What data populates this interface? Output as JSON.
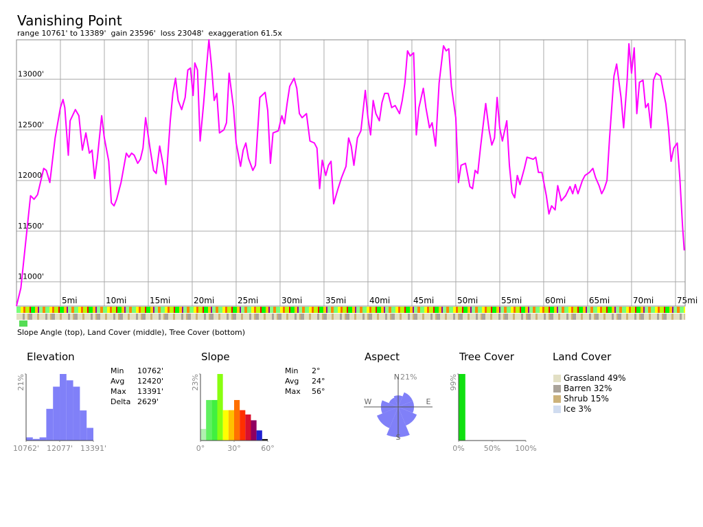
{
  "chart_data": [
    {
      "type": "line",
      "title": "Vanishing Point",
      "subtitle": "range 10761' to 13389'  gain 23596'  loss 23048'  exaggeration 61.5x",
      "color": "#ff00ff",
      "xlim": [
        0,
        76.1
      ],
      "ylim": [
        10761,
        13389
      ],
      "xticks": [
        {
          "value": 5,
          "label": "5mi"
        },
        {
          "value": 10,
          "label": "10mi"
        },
        {
          "value": 15,
          "label": "15mi"
        },
        {
          "value": 20,
          "label": "20mi"
        },
        {
          "value": 25,
          "label": "25mi"
        },
        {
          "value": 30,
          "label": "30mi"
        },
        {
          "value": 35,
          "label": "35mi"
        },
        {
          "value": 40,
          "label": "40mi"
        },
        {
          "value": 45,
          "label": "45mi"
        },
        {
          "value": 50,
          "label": "50mi"
        },
        {
          "value": 55,
          "label": "55mi"
        },
        {
          "value": 60,
          "label": "60mi"
        },
        {
          "value": 65,
          "label": "65mi"
        },
        {
          "value": 70,
          "label": "70mi"
        },
        {
          "value": 75,
          "label": "75mi"
        }
      ],
      "yticks": [
        {
          "value": 11000,
          "label": "11000'"
        },
        {
          "value": 11500,
          "label": "11500'"
        },
        {
          "value": 12000,
          "label": "12000'"
        },
        {
          "value": 12500,
          "label": "12500'"
        },
        {
          "value": 13000,
          "label": "13000'"
        }
      ],
      "grid": true,
      "x": [
        0,
        0.5,
        1.6,
        2.0,
        2.4,
        3.1,
        3.4,
        3.8,
        4.4,
        5.0,
        5.3,
        5.5,
        5.9,
        6.1,
        6.7,
        7.1,
        7.5,
        7.9,
        8.3,
        8.6,
        8.9,
        9.2,
        9.7,
        10.0,
        10.5,
        10.8,
        11.1,
        11.4,
        11.9,
        12.5,
        12.8,
        13.1,
        13.4,
        13.8,
        14.1,
        14.4,
        14.7,
        15.2,
        15.6,
        15.9,
        16.3,
        16.7,
        17.0,
        17.5,
        17.8,
        18.1,
        18.4,
        18.8,
        19.2,
        19.5,
        19.8,
        20.1,
        20.3,
        20.6,
        20.9,
        21.3,
        21.6,
        21.9,
        22.2,
        22.5,
        22.8,
        23.1,
        23.6,
        23.9,
        24.2,
        24.7,
        25.0,
        25.5,
        25.8,
        26.1,
        26.4,
        26.9,
        27.2,
        27.7,
        28.3,
        28.6,
        28.9,
        29.2,
        29.8,
        30.2,
        30.5,
        30.8,
        31.1,
        31.6,
        31.9,
        32.2,
        32.5,
        33.0,
        33.4,
        33.9,
        34.2,
        34.5,
        34.8,
        35.2,
        35.5,
        35.8,
        36.1,
        36.6,
        37.0,
        37.5,
        37.8,
        38.1,
        38.4,
        38.8,
        39.2,
        39.7,
        40.0,
        40.3,
        40.6,
        40.9,
        41.3,
        41.6,
        41.9,
        42.3,
        42.7,
        43.1,
        43.6,
        43.9,
        44.2,
        44.5,
        44.8,
        45.2,
        45.5,
        45.8,
        46.3,
        46.6,
        47.0,
        47.3,
        47.7,
        48.1,
        48.6,
        48.9,
        49.2,
        49.5,
        50.0,
        50.3,
        50.6,
        51.1,
        51.6,
        51.9,
        52.2,
        52.5,
        52.8,
        53.4,
        53.8,
        54.1,
        54.4,
        54.7,
        55.0,
        55.3,
        55.8,
        56.1,
        56.4,
        56.7,
        57.0,
        57.3,
        57.8,
        58.1,
        58.8,
        59.1,
        59.4,
        59.8,
        60.3,
        60.6,
        60.9,
        61.3,
        61.6,
        62.0,
        62.5,
        63.0,
        63.3,
        63.6,
        63.9,
        64.4,
        64.7,
        65.2,
        65.6,
        65.9,
        66.3,
        66.6,
        66.9,
        67.2,
        67.5,
        68.0,
        68.3,
        68.8,
        69.1,
        69.5,
        69.7,
        70.0,
        70.3,
        70.6,
        70.9,
        71.3,
        71.6,
        71.9,
        72.2,
        72.5,
        72.8,
        73.3,
        73.6,
        73.9,
        74.2,
        74.5,
        74.8,
        75.2,
        75.5,
        75.8,
        76.0
      ],
      "values": [
        10762,
        10940,
        11850,
        11815,
        11860,
        12120,
        12100,
        11980,
        12420,
        12720,
        12800,
        12720,
        12250,
        12590,
        12700,
        12640,
        12300,
        12470,
        12270,
        12300,
        12020,
        12220,
        12640,
        12420,
        12190,
        11780,
        11750,
        11815,
        11980,
        12270,
        12230,
        12270,
        12250,
        12170,
        12210,
        12320,
        12620,
        12320,
        12100,
        12070,
        12340,
        12150,
        11960,
        12590,
        12860,
        13010,
        12790,
        12700,
        12820,
        13090,
        13110,
        12840,
        13160,
        13090,
        12390,
        12760,
        13090,
        13389,
        13130,
        12790,
        12860,
        12470,
        12500,
        12570,
        13060,
        12720,
        12370,
        12140,
        12300,
        12370,
        12220,
        12100,
        12150,
        12820,
        12870,
        12690,
        12170,
        12470,
        12490,
        12640,
        12560,
        12760,
        12930,
        13010,
        12910,
        12660,
        12620,
        12660,
        12390,
        12370,
        12320,
        11920,
        12200,
        12050,
        12150,
        12190,
        11770,
        11920,
        12030,
        12140,
        12420,
        12340,
        12150,
        12420,
        12490,
        12890,
        12620,
        12450,
        12790,
        12660,
        12590,
        12770,
        12860,
        12860,
        12720,
        12740,
        12660,
        12790,
        12960,
        13280,
        13230,
        13260,
        12450,
        12720,
        12910,
        12720,
        12520,
        12570,
        12340,
        12960,
        13330,
        13280,
        13300,
        12930,
        12620,
        11980,
        12150,
        12170,
        11940,
        11920,
        12100,
        12070,
        12320,
        12760,
        12490,
        12350,
        12420,
        12820,
        12520,
        12390,
        12590,
        12150,
        11880,
        11830,
        12050,
        11960,
        12120,
        12230,
        12210,
        12230,
        12080,
        12080,
        11850,
        11670,
        11750,
        11710,
        11950,
        11800,
        11850,
        11940,
        11870,
        11960,
        11870,
        12000,
        12050,
        12080,
        12120,
        12030,
        11950,
        11870,
        11920,
        12000,
        12420,
        13030,
        13150,
        12820,
        12520,
        12990,
        13350,
        13060,
        13310,
        12660,
        12970,
        12990,
        12720,
        12760,
        12520,
        12990,
        13060,
        13030,
        12890,
        12760,
        12520,
        12190,
        12320,
        12370,
        12020,
        11550,
        11310
      ]
    },
    {
      "type": "histogram",
      "title": "Elevation",
      "color": "#8080f8",
      "bins": [
        10762,
        11025,
        11288,
        11551,
        11814,
        12077,
        12339,
        12602,
        12865,
        13128,
        13391
      ],
      "values": [
        1,
        0.5,
        1,
        10,
        17,
        21,
        19,
        17,
        9.5,
        4
      ],
      "xlim": [
        10762,
        13391
      ],
      "ylim": [
        0,
        21
      ],
      "xticks": [
        {
          "value": 10762,
          "label": "10762'"
        },
        {
          "value": 12077,
          "label": "12077'"
        },
        {
          "value": 13391,
          "label": "13391'"
        }
      ],
      "yticks": [
        {
          "value": 21,
          "label": "21%"
        }
      ],
      "stats": [
        [
          "Min",
          "10762'"
        ],
        [
          "Avg",
          "12420'"
        ],
        [
          "Max",
          "13391'"
        ],
        [
          "Delta",
          "2629'"
        ]
      ]
    },
    {
      "type": "histogram",
      "title": "Slope",
      "colors": [
        "#b0f0b0",
        "#60f060",
        "#40f040",
        "#88ff10",
        "#ffff00",
        "#ffc000",
        "#ff7000",
        "#ff3000",
        "#d81030",
        "#900060",
        "#2020d0",
        "#000000"
      ],
      "bins": [
        0,
        5,
        10,
        15,
        20,
        25,
        30,
        35,
        40,
        45,
        50,
        55,
        60
      ],
      "values": [
        4,
        14,
        14,
        23,
        10.5,
        10.5,
        14,
        10.5,
        9,
        7,
        3.5,
        0.5
      ],
      "xlim": [
        0,
        60
      ],
      "ylim": [
        0,
        23
      ],
      "xticks": [
        {
          "value": 0,
          "label": "0°"
        },
        {
          "value": 30,
          "label": "30°"
        },
        {
          "value": 60,
          "label": "60°"
        }
      ],
      "yticks": [
        {
          "value": 23,
          "label": "23%"
        }
      ],
      "stats": [
        [
          "Min",
          "2°"
        ],
        [
          "Avg",
          "24°"
        ],
        [
          "Max",
          "56°"
        ]
      ]
    },
    {
      "type": "polar",
      "title": "Aspect",
      "color": "#8080f8",
      "categories": [
        "N",
        null,
        "E",
        null,
        "S",
        null,
        "W",
        null
      ],
      "values": [
        8,
        11,
        11,
        14,
        21,
        16,
        12,
        7
      ],
      "rlim": [
        0,
        21
      ],
      "rticks": [
        {
          "value": 21,
          "label": "21%"
        }
      ]
    },
    {
      "type": "histogram",
      "title": "Tree Cover",
      "color": "#10e010",
      "bins": [
        0,
        10,
        20,
        30,
        40,
        50,
        60,
        70,
        80,
        90,
        100
      ],
      "values": [
        99,
        0,
        0,
        0,
        0.3,
        0.3,
        0,
        0,
        0,
        0
      ],
      "xlim": [
        0,
        100
      ],
      "ylim": [
        0,
        99
      ],
      "xticks": [
        {
          "value": 0,
          "label": "0%"
        },
        {
          "value": 50,
          "label": "50%"
        },
        {
          "value": 100,
          "label": "100%"
        }
      ],
      "yticks": [
        {
          "value": 99,
          "label": "99%"
        }
      ]
    }
  ],
  "strips": {
    "caption": "Slope Angle (top), Land Cover (middle), Tree Cover (bottom)"
  },
  "land_cover": {
    "title": "Land Cover",
    "items": [
      {
        "label": "Grassland 49%",
        "color": "#e2dfc4"
      },
      {
        "label": "Barren 32%",
        "color": "#aaa39a"
      },
      {
        "label": "Shrub 15%",
        "color": "#ccb27a"
      },
      {
        "label": "Ice 3%",
        "color": "#d0dcf0"
      }
    ]
  }
}
